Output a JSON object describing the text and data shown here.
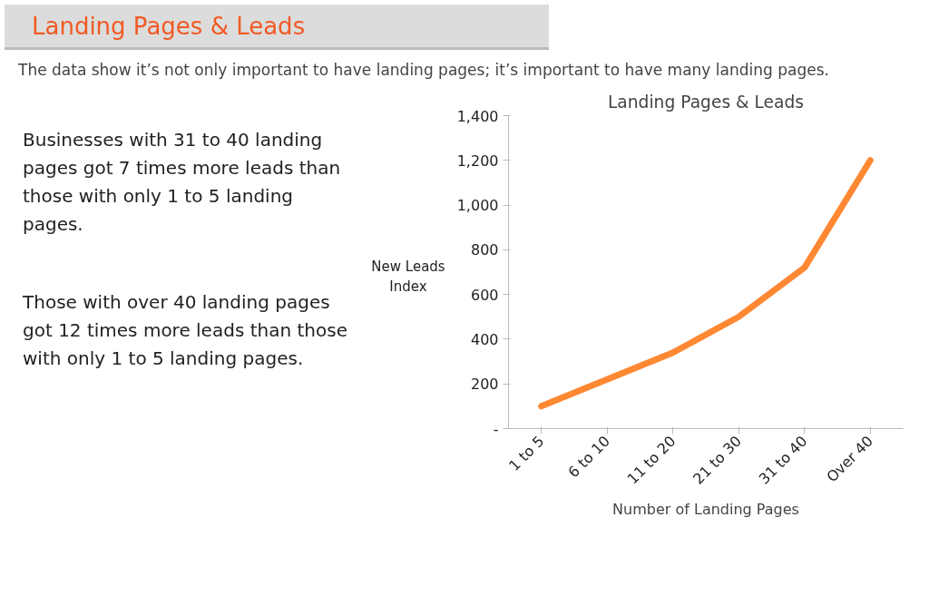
{
  "chart_data": {
    "type": "line",
    "title": "Landing Pages & Leads",
    "annotations": [
      "Landing Pages & Leads",
      "The data show it’s not only important to have landing pages; it’s important to have many landing pages.",
      "Businesses with 31 to 40 landing pages got 7  times more leads than those with only 1 to 5 landing pages.",
      "Those with over 40 landing pages got 12 times more leads than those with only 1 to 5 landing pages."
    ],
    "xlabel": "Number of Landing Pages",
    "ylabel": "New Leads Index",
    "categories": [
      "1 to 5",
      "6 to 10",
      "11 to 20",
      "21 to 30",
      "31 to 40",
      "Over 40"
    ],
    "series": [
      {
        "color": "#ff8833",
        "values": [
          100,
          220,
          340,
          500,
          720,
          1200
        ]
      }
    ],
    "ylim": [
      0,
      1400
    ],
    "yticks": [
      {
        "value": 0,
        "label": "-"
      },
      200,
      400,
      600,
      800,
      {
        "value": 1000,
        "label": "1,000"
      },
      {
        "value": 1200,
        "label": "1,200"
      },
      {
        "value": 1400,
        "label": "1,400"
      }
    ],
    "grid": false,
    "marker": "none",
    "line_style": "solid"
  }
}
